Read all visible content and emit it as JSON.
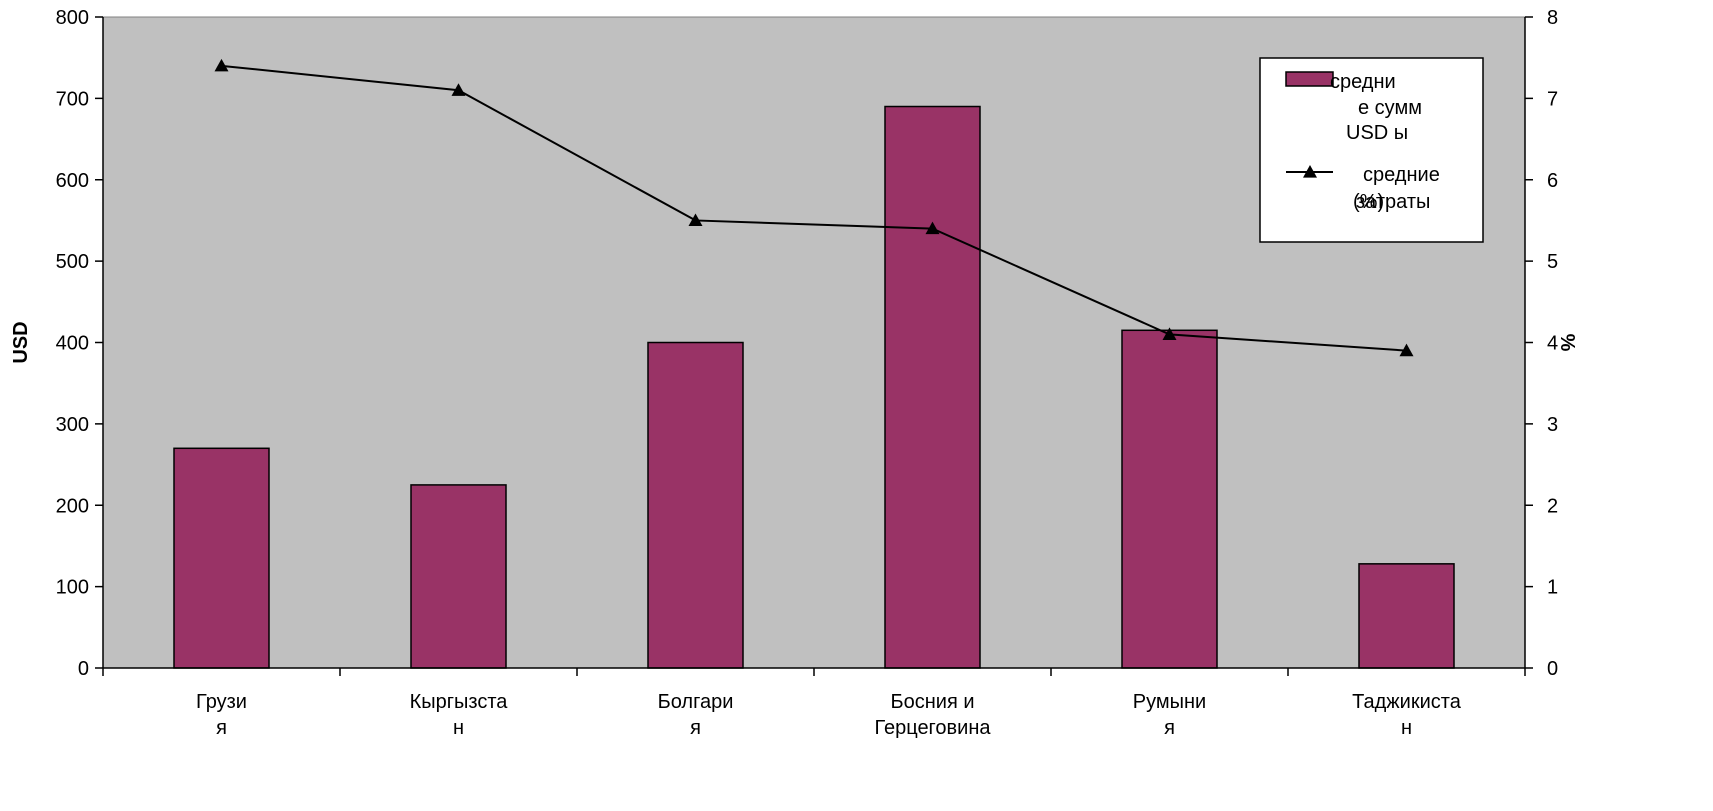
{
  "chart_data": {
    "type": "bar",
    "categories": [
      [
        "Грузи",
        "я"
      ],
      [
        "Кыргызста",
        "н"
      ],
      [
        "Болгари",
        "я"
      ],
      [
        "Босния и",
        "Герцеговина"
      ],
      [
        "Румыни",
        "я"
      ],
      [
        "Таджикиста",
        "н"
      ]
    ],
    "series": [
      {
        "name": "средние суммы USD",
        "legend_lines": [
          "средни",
          "е сумм",
          "USD ы"
        ],
        "type": "bar",
        "axis": "left",
        "values": [
          270,
          225,
          400,
          690,
          415,
          128
        ],
        "color": "#993366"
      },
      {
        "name": "средние затраты (%)",
        "legend_lines": [
          "средние",
          "затраты",
          "(%)"
        ],
        "type": "line",
        "axis": "right",
        "marker": "triangle",
        "values": [
          7.4,
          7.1,
          5.5,
          5.4,
          4.1,
          3.9
        ],
        "color": "#000000"
      }
    ],
    "ylabel": "USD",
    "y2label": "%",
    "ylim": [
      0,
      800
    ],
    "y2lim": [
      0,
      8
    ],
    "yticks": [
      0,
      100,
      200,
      300,
      400,
      500,
      600,
      700,
      800
    ],
    "y2ticks": [
      0,
      1,
      2,
      3,
      4,
      5,
      6,
      7,
      8
    ],
    "plot_background": "#c0c0c0",
    "grid": false,
    "legend_position": "top-right"
  }
}
